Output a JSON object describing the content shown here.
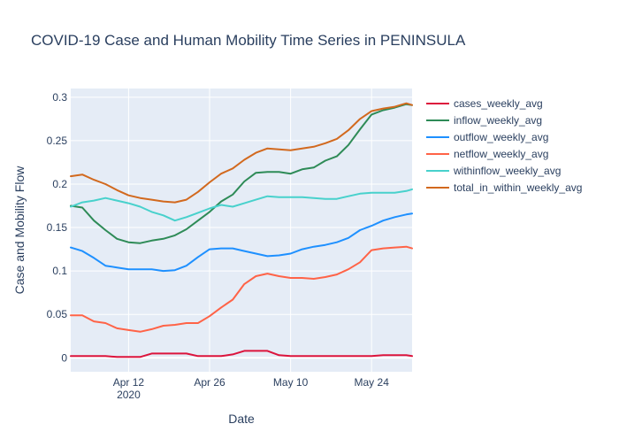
{
  "chart_data": {
    "type": "line",
    "title": "COVID-19 Case and Human Mobility Time Series in PENINSULA",
    "xlabel": "Date",
    "ylabel": "Case and Mobility Flow",
    "x_range": [
      "2020-04-02",
      "2020-05-31"
    ],
    "ylim": [
      -0.016,
      0.31
    ],
    "x_ticks": [
      {
        "date": "2020-04-12",
        "label": "Apr 12",
        "sublabel": "2020"
      },
      {
        "date": "2020-04-26",
        "label": "Apr 26",
        "sublabel": ""
      },
      {
        "date": "2020-05-10",
        "label": "May 10",
        "sublabel": ""
      },
      {
        "date": "2020-05-24",
        "label": "May 24",
        "sublabel": ""
      }
    ],
    "y_ticks": [
      {
        "value": 0,
        "label": "0"
      },
      {
        "value": 0.05,
        "label": "0.05"
      },
      {
        "value": 0.1,
        "label": "0.1"
      },
      {
        "value": 0.15,
        "label": "0.15"
      },
      {
        "value": 0.2,
        "label": "0.2"
      },
      {
        "value": 0.25,
        "label": "0.25"
      },
      {
        "value": 0.3,
        "label": "0.3"
      }
    ],
    "grid": true,
    "legend_position": "right",
    "x": [
      "2020-04-02",
      "2020-04-04",
      "2020-04-06",
      "2020-04-08",
      "2020-04-10",
      "2020-04-12",
      "2020-04-14",
      "2020-04-16",
      "2020-04-18",
      "2020-04-20",
      "2020-04-22",
      "2020-04-24",
      "2020-04-26",
      "2020-04-28",
      "2020-04-30",
      "2020-05-02",
      "2020-05-04",
      "2020-05-06",
      "2020-05-08",
      "2020-05-10",
      "2020-05-12",
      "2020-05-14",
      "2020-05-16",
      "2020-05-18",
      "2020-05-20",
      "2020-05-22",
      "2020-05-24",
      "2020-05-26",
      "2020-05-28",
      "2020-05-30",
      "2020-05-31"
    ],
    "series": [
      {
        "name": "cases_weekly_avg",
        "color": "#dc143c",
        "values": [
          0.002,
          0.002,
          0.002,
          0.002,
          0.001,
          0.001,
          0.001,
          0.005,
          0.005,
          0.005,
          0.005,
          0.002,
          0.002,
          0.002,
          0.004,
          0.008,
          0.008,
          0.008,
          0.003,
          0.002,
          0.002,
          0.002,
          0.002,
          0.002,
          0.002,
          0.002,
          0.002,
          0.003,
          0.003,
          0.003,
          0.002
        ]
      },
      {
        "name": "inflow_weekly_avg",
        "color": "#2e8b57",
        "values": [
          0.175,
          0.173,
          0.158,
          0.147,
          0.137,
          0.133,
          0.132,
          0.135,
          0.137,
          0.141,
          0.148,
          0.158,
          0.168,
          0.18,
          0.188,
          0.203,
          0.213,
          0.214,
          0.214,
          0.212,
          0.217,
          0.219,
          0.227,
          0.232,
          0.245,
          0.263,
          0.28,
          0.285,
          0.288,
          0.292,
          0.291
        ]
      },
      {
        "name": "outflow_weekly_avg",
        "color": "#1e90ff",
        "values": [
          0.127,
          0.123,
          0.115,
          0.106,
          0.104,
          0.102,
          0.102,
          0.102,
          0.1,
          0.101,
          0.106,
          0.116,
          0.125,
          0.126,
          0.126,
          0.123,
          0.12,
          0.117,
          0.118,
          0.12,
          0.125,
          0.128,
          0.13,
          0.133,
          0.138,
          0.147,
          0.152,
          0.158,
          0.162,
          0.165,
          0.166
        ]
      },
      {
        "name": "netflow_weekly_avg",
        "color": "#ff6347",
        "values": [
          0.049,
          0.049,
          0.042,
          0.04,
          0.034,
          0.032,
          0.03,
          0.033,
          0.037,
          0.038,
          0.04,
          0.04,
          0.048,
          0.058,
          0.067,
          0.085,
          0.094,
          0.097,
          0.094,
          0.092,
          0.092,
          0.091,
          0.093,
          0.096,
          0.102,
          0.11,
          0.124,
          0.126,
          0.127,
          0.128,
          0.126
        ]
      },
      {
        "name": "withinflow_weekly_avg",
        "color": "#48d1cc",
        "values": [
          0.174,
          0.179,
          0.181,
          0.184,
          0.181,
          0.178,
          0.174,
          0.168,
          0.164,
          0.158,
          0.162,
          0.167,
          0.172,
          0.176,
          0.174,
          0.178,
          0.182,
          0.186,
          0.185,
          0.185,
          0.185,
          0.184,
          0.183,
          0.183,
          0.186,
          0.189,
          0.19,
          0.19,
          0.19,
          0.192,
          0.194
        ]
      },
      {
        "name": "total_in_within_weekly_avg",
        "color": "#d2691e",
        "values": [
          0.209,
          0.211,
          0.205,
          0.2,
          0.193,
          0.187,
          0.184,
          0.182,
          0.18,
          0.179,
          0.182,
          0.191,
          0.202,
          0.212,
          0.218,
          0.228,
          0.236,
          0.241,
          0.24,
          0.239,
          0.241,
          0.243,
          0.247,
          0.252,
          0.262,
          0.275,
          0.284,
          0.287,
          0.289,
          0.293,
          0.291
        ]
      }
    ]
  }
}
